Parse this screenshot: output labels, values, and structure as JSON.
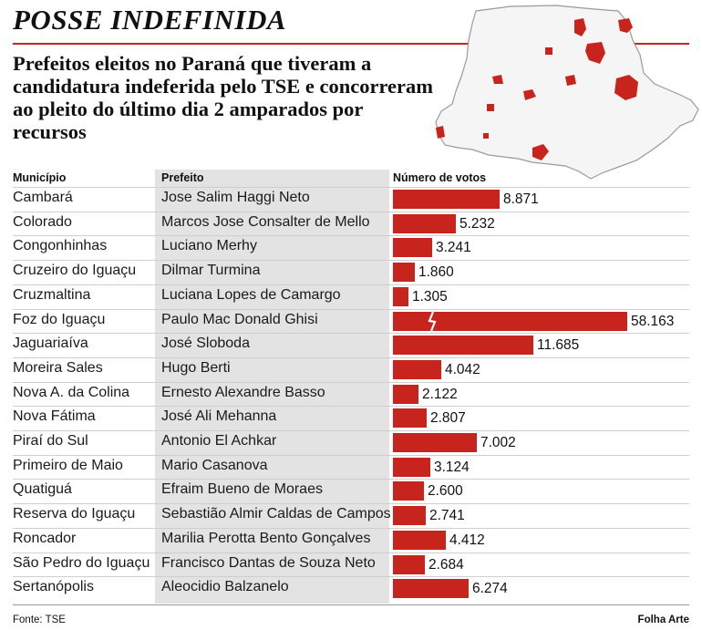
{
  "header": {
    "title": "POSSE INDEFINIDA",
    "subtitle": "Prefeitos eleitos no Paraná que tiveram a candidatura indeferida pelo TSE e concorreram ao pleito do último dia 2 amparados por recursos"
  },
  "table": {
    "columns": [
      "Município",
      "Prefeito",
      "Número de votos"
    ]
  },
  "chart_data": {
    "type": "bar",
    "orientation": "horizontal",
    "axis_break": "Foz do Iguaçu",
    "categories": [
      "Cambará",
      "Colorado",
      "Congonhinhas",
      "Cruzeiro do Iguaçu",
      "Cruzmaltina",
      "Foz do Iguaçu",
      "Jaguariaíva",
      "Moreira Sales",
      "Nova A. da Colina",
      "Nova Fátima",
      "Piraí do Sul",
      "Primeiro de Maio",
      "Quatiguá",
      "Reserva do Iguaçu",
      "Roncador",
      "São Pedro do Iguaçu",
      "Sertanópolis"
    ],
    "mayors": [
      "Jose Salim Haggi Neto",
      "Marcos Jose Consalter de Mello",
      "Luciano Merhy",
      "Dilmar Turmina",
      "Luciana Lopes de Camargo",
      "Paulo Mac Donald Ghisi",
      "José Sloboda",
      "Hugo Berti",
      "Ernesto Alexandre Basso",
      "José Ali Mehanna",
      "Antonio El Achkar",
      "Mario Casanova",
      "Efraim Bueno de Moraes",
      "Sebastião Almir Caldas de Campos",
      "Marilia Perotta Bento Gonçalves",
      "Francisco Dantas de Souza Neto",
      "Aleocidio Balzanelo"
    ],
    "values": [
      8871,
      5232,
      3241,
      1860,
      1305,
      58163,
      11685,
      4042,
      2122,
      2807,
      7002,
      3124,
      2600,
      2741,
      4412,
      2684,
      6274
    ],
    "labels": [
      "8.871",
      "5.232",
      "3.241",
      "1.860",
      "1.305",
      "58.163",
      "11.685",
      "4.042",
      "2.122",
      "2.807",
      "7.002",
      "3.124",
      "2.600",
      "2.741",
      "4.412",
      "2.684",
      "6.274"
    ],
    "bar_color": "#c8241e"
  },
  "footer": {
    "source": "Fonte: TSE",
    "credit": "Folha Arte"
  }
}
